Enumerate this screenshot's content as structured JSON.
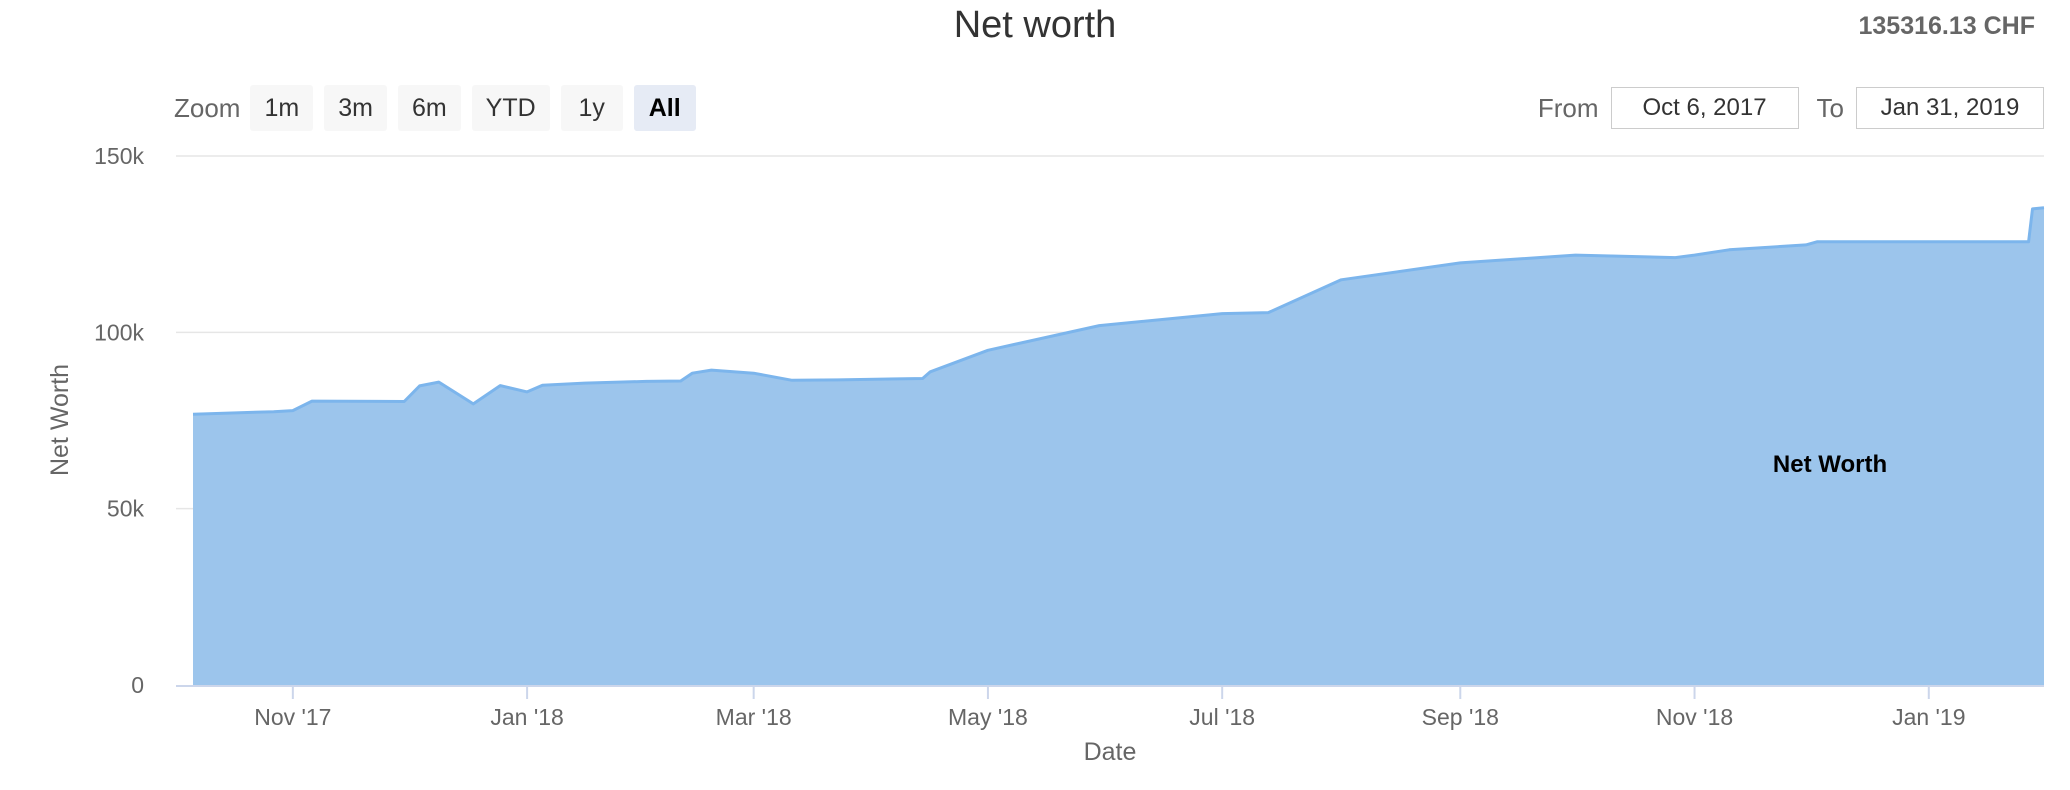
{
  "header": {
    "title": "Net worth",
    "total": "135316.13 CHF"
  },
  "zoom": {
    "label": "Zoom",
    "buttons": [
      "1m",
      "3m",
      "6m",
      "YTD",
      "1y",
      "All"
    ],
    "active": "All"
  },
  "range": {
    "from_label": "From",
    "from_value": "Oct 6, 2017",
    "to_label": "To",
    "to_value": "Jan 31, 2019"
  },
  "colors": {
    "area_fill": "#9cc5ec",
    "area_line": "#7cb5ec",
    "grid": "#e6e6e6",
    "axis": "#ccd6eb"
  },
  "chart_data": {
    "type": "area",
    "title": "Net worth",
    "xlabel": "Date",
    "ylabel": "Net Worth",
    "ylim": [
      0,
      150000
    ],
    "yticks": [
      0,
      50000,
      100000,
      150000
    ],
    "ytick_labels": [
      "0",
      "50k",
      "100k",
      "150k"
    ],
    "xlim": [
      "2017-10-06",
      "2019-01-31"
    ],
    "xticks": [
      "2017-11-01",
      "2018-01-01",
      "2018-03-01",
      "2018-05-01",
      "2018-07-01",
      "2018-09-01",
      "2018-11-01",
      "2019-01-01"
    ],
    "xtick_labels": [
      "Nov '17",
      "Jan '18",
      "Mar '18",
      "May '18",
      "Jul '18",
      "Sep '18",
      "Nov '18",
      "Jan '19"
    ],
    "grid": true,
    "series": [
      {
        "name": "Net Worth",
        "x": [
          "2017-10-06",
          "2017-10-27",
          "2017-11-01",
          "2017-11-06",
          "2017-11-30",
          "2017-12-04",
          "2017-12-09",
          "2017-12-18",
          "2017-12-25",
          "2018-01-01",
          "2018-01-05",
          "2018-01-16",
          "2018-02-01",
          "2018-02-10",
          "2018-02-13",
          "2018-02-18",
          "2018-03-01",
          "2018-03-11",
          "2018-03-23",
          "2018-04-14",
          "2018-04-16",
          "2018-05-01",
          "2018-05-30",
          "2018-07-01",
          "2018-07-13",
          "2018-08-01",
          "2018-09-01",
          "2018-10-01",
          "2018-10-27",
          "2018-11-01",
          "2018-11-10",
          "2018-11-30",
          "2018-12-03",
          "2018-12-10",
          "2019-01-27",
          "2019-01-28",
          "2019-01-31"
        ],
        "y": [
          76800,
          77500,
          77800,
          80500,
          80400,
          84800,
          85900,
          79700,
          84900,
          83100,
          85000,
          85600,
          86100,
          86200,
          88400,
          89300,
          88400,
          86400,
          86500,
          86900,
          88800,
          94900,
          101900,
          105300,
          105600,
          114900,
          119700,
          121900,
          121200,
          121900,
          123400,
          124800,
          125700,
          125700,
          125700,
          135000,
          135300
        ]
      }
    ]
  }
}
